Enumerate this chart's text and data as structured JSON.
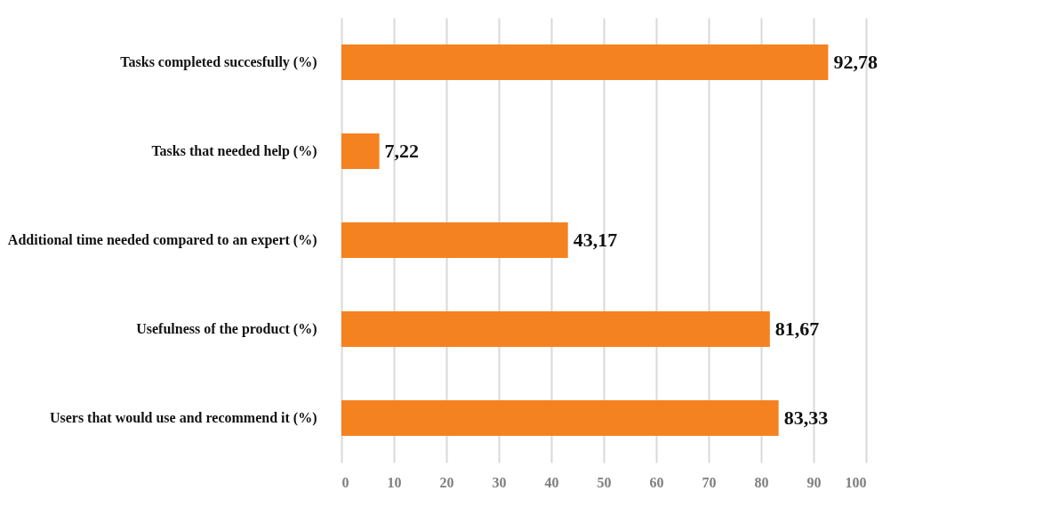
{
  "chart_data": {
    "type": "bar",
    "orientation": "horizontal",
    "categories": [
      "Tasks completed succesfully (%)",
      "Tasks that needed help (%)",
      "Additional time needed compared to an expert (%)",
      "Usefulness of the product (%)",
      "Users that would use and recommend it (%)"
    ],
    "values": [
      92.78,
      7.22,
      43.17,
      81.67,
      83.33
    ],
    "value_labels": [
      "92,78",
      "7,22",
      "43,17",
      "81,67",
      "83,33"
    ],
    "color": "#f58220",
    "xlim": [
      0,
      100
    ],
    "xticks": [
      0,
      10,
      20,
      30,
      40,
      50,
      60,
      70,
      80,
      90,
      100
    ],
    "grid": "x"
  }
}
